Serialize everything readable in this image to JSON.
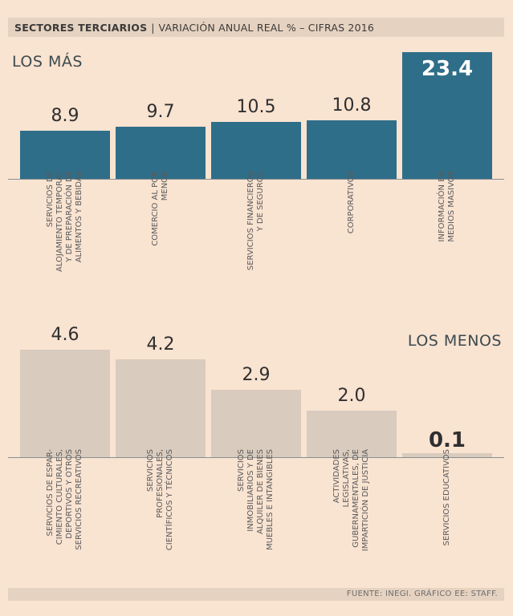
{
  "header": {
    "title": "SECTORES TERCIARIOS",
    "separator": "|",
    "subtitle": "VARIACIÓN ANUAL REAL % – CIFRAS 2016"
  },
  "top_section_label": "LOS MÁS",
  "bottom_section_label": "LOS MENOS",
  "footer": "FUENTE: INEGI. GRÁFICO EE: STAFF.",
  "colors": {
    "top_bar": "#2f6e89",
    "bottom_bar": "#d9cbbd",
    "background": "#f9e3d1"
  },
  "chart_data": [
    {
      "type": "bar",
      "title": "LOS MÁS",
      "categories": [
        "Servicios de alojamiento temporal y de preparación de alimentos y bebidas",
        "Comercio al por menor",
        "Servicios financieros y de seguros",
        "Corporativos",
        "Información en medios masivos"
      ],
      "category_lines": [
        [
          "SERVICIOS DE",
          "ALOJAMIENTO TEMPORAL",
          "Y DE PREPARACIÓN DE",
          "ALIMENTOS Y BEBIDAS"
        ],
        [
          "COMERCIO AL POR",
          "MENOR"
        ],
        [
          "SERVICIOS FINANCIEROS",
          "Y DE SEGUROS"
        ],
        [
          "CORPORATIVOS"
        ],
        [
          "INFORMACIÓN EN",
          "MEDIOS MASIVOS"
        ]
      ],
      "values": [
        8.9,
        9.7,
        10.5,
        10.8,
        23.4
      ],
      "value_labels": [
        "8.9",
        "9.7",
        "10.5",
        "10.8",
        "23.4"
      ],
      "ylim": [
        0,
        23.4
      ]
    },
    {
      "type": "bar",
      "title": "LOS MENOS",
      "categories": [
        "Servicios de esparcimiento culturales, deportivos y otros servicios recreativos",
        "Servicios profesionales, científicos y técnicos",
        "Servicios inmobiliarios y de alquiler de bienes muebles e intangibles",
        "Actividades legislativas, gubernamentales, de impartición de justicia",
        "Servicios educativos"
      ],
      "category_lines": [
        [
          "SERVICIOS DE ESPAR-",
          "CIMIENTO CULTURALES,",
          "DEPORTIVOS Y OTROS",
          "SERVICIOS RECREATIVOS"
        ],
        [
          "SERVICIOS",
          "PROFESIONALES,",
          "CIENTÍFICOS Y TÉCNICOS"
        ],
        [
          "SERVICIOS",
          "INMOBILIARIOS Y DE",
          "ALQUILER DE BIENES",
          "MUEBLES E INTANGIBLES"
        ],
        [
          "ACTIVIDADES",
          "LEGISLATIVAS,",
          "GUBERNAMENTALES, DE",
          "IMPARTICIÓN DE JUSTICIA"
        ],
        [
          "SERVICIOS EDUCATIVOS"
        ]
      ],
      "values": [
        4.6,
        4.2,
        2.9,
        2.0,
        0.1
      ],
      "value_labels": [
        "4.6",
        "4.2",
        "2.9",
        "2.0",
        "0.1"
      ],
      "ylim": [
        0,
        4.6
      ]
    }
  ]
}
